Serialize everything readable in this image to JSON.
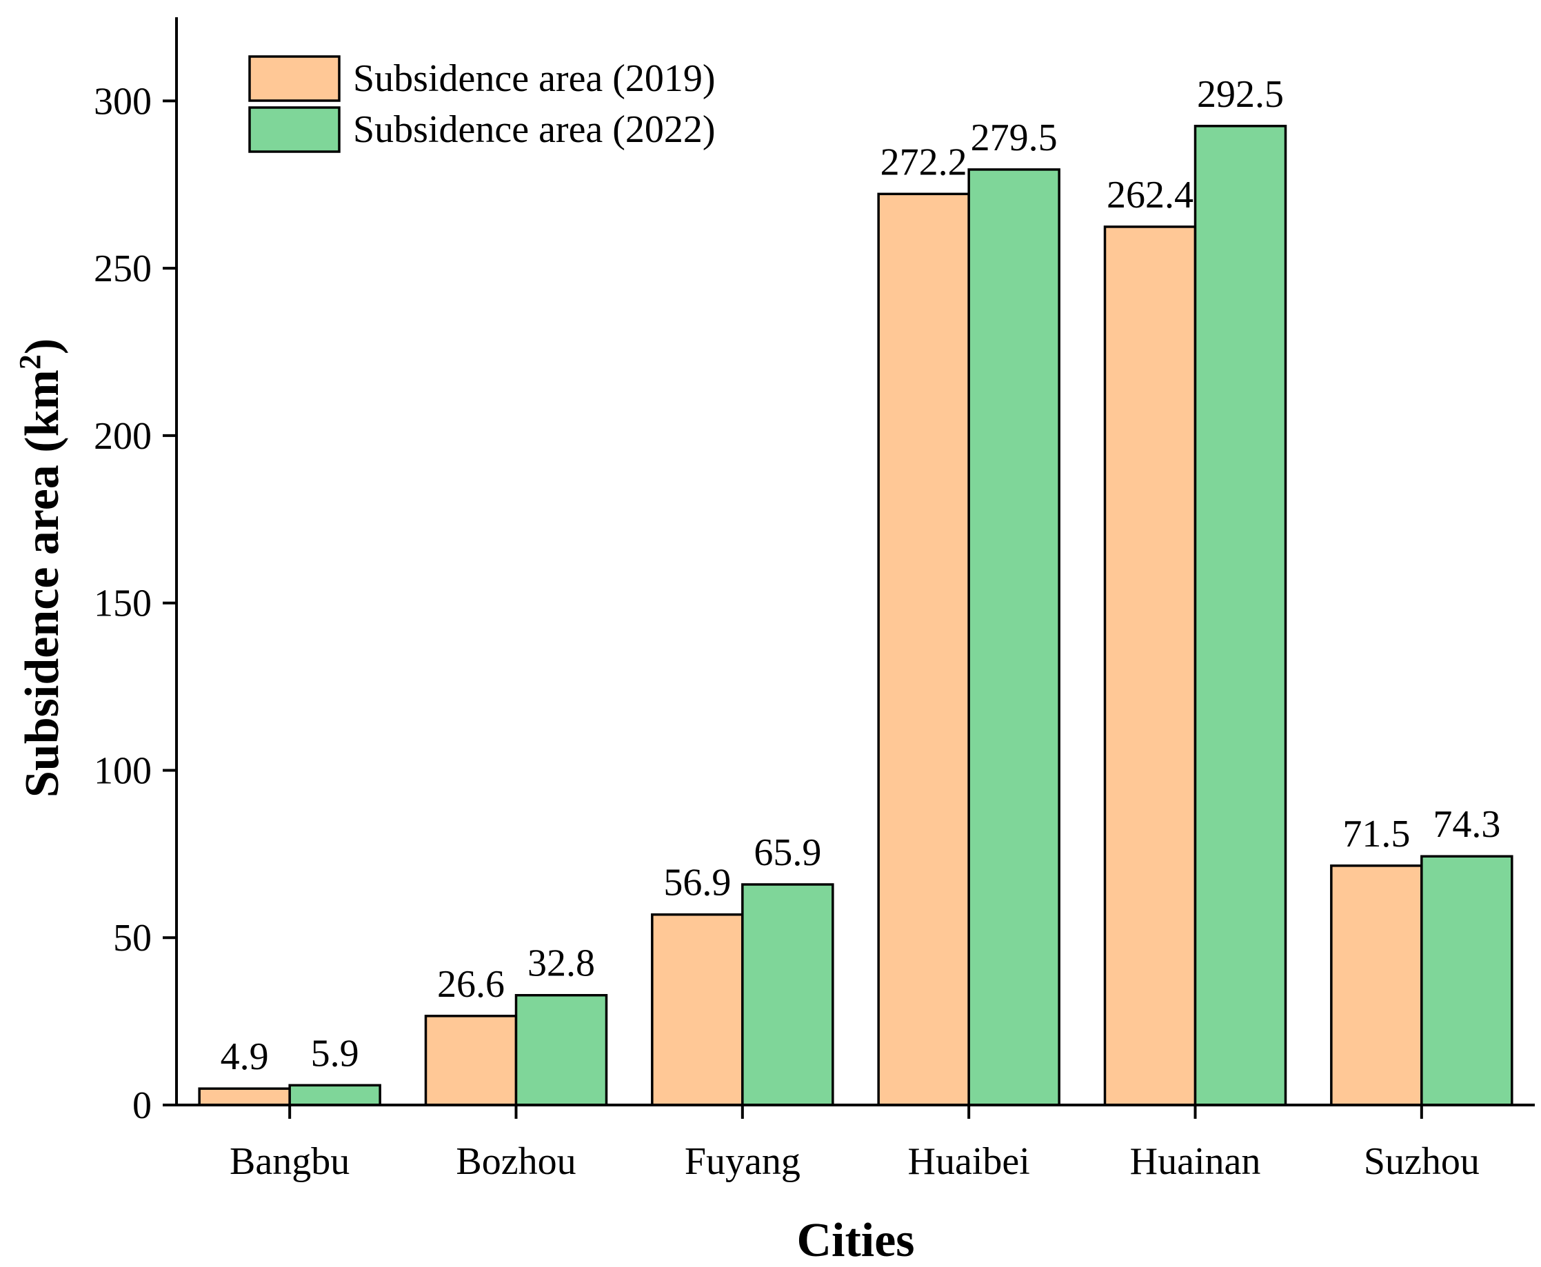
{
  "chart_data": {
    "type": "bar",
    "title": "",
    "xlabel": "Cities",
    "ylabel_main": "Subsidence area (km",
    "ylabel_sup": "2",
    "ylabel_close": ")",
    "ylim": [
      0,
      325
    ],
    "yticks": [
      0,
      50,
      100,
      150,
      200,
      250,
      300
    ],
    "ytick_labels": [
      "0",
      "50",
      "100",
      "150",
      "200",
      "250",
      "300"
    ],
    "categories": [
      "Bangbu",
      "Bozhou",
      "Fuyang",
      "Huaibei",
      "Huainan",
      "Suzhou"
    ],
    "series": [
      {
        "name": "Subsidence area (2019)",
        "values": [
          4.9,
          26.6,
          56.9,
          272.2,
          262.4,
          71.5
        ],
        "labels": [
          "4.9",
          "26.6",
          "56.9",
          "272.2",
          "262.4",
          "71.5"
        ],
        "color": "#FFC896"
      },
      {
        "name": "Subsidence area (2022)",
        "values": [
          5.9,
          32.8,
          65.9,
          279.5,
          292.5,
          74.3
        ],
        "labels": [
          "5.9",
          "32.8",
          "65.9",
          "279.5",
          "292.5",
          "74.3"
        ],
        "color": "#7FD699"
      }
    ],
    "legend_position": "top-left",
    "grid": false
  }
}
